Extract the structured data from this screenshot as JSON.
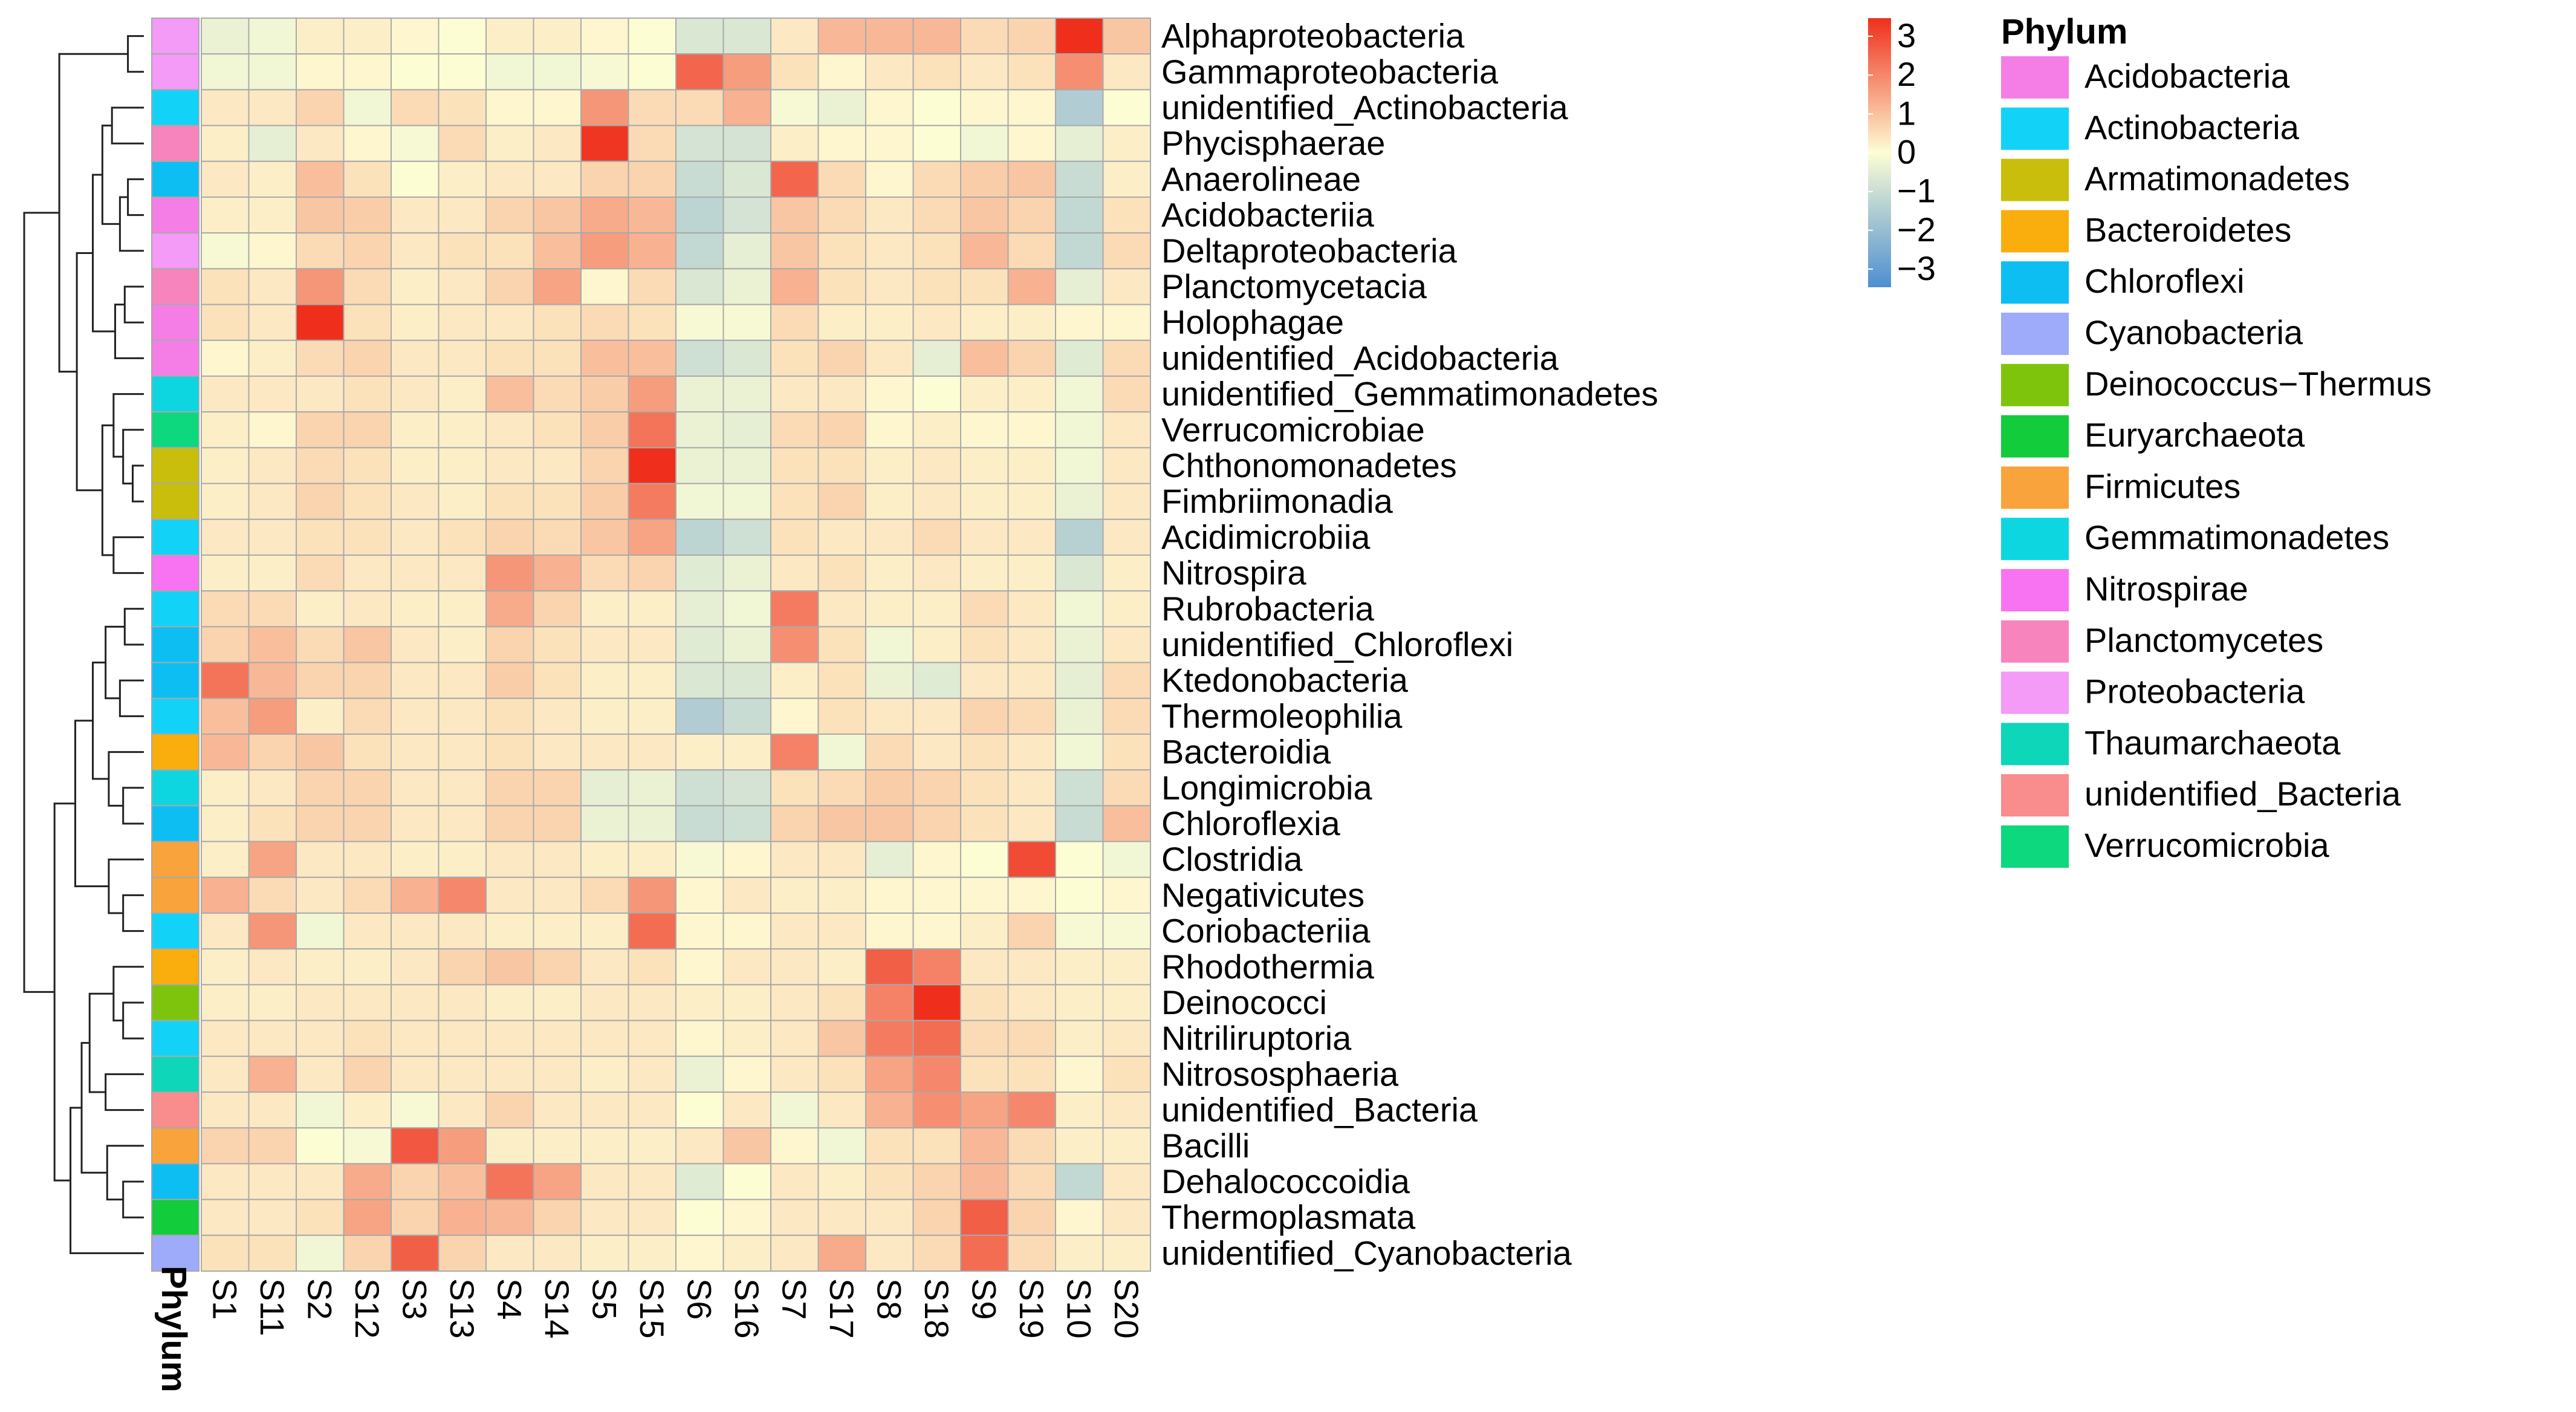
{
  "chart_data": {
    "type": "heatmap",
    "title": "",
    "rows": [
      "Alphaproteobacteria",
      "Gammaproteobacteria",
      "unidentified_Actinobacteria",
      "Phycisphaerae",
      "Anaerolineae",
      "Acidobacteriia",
      "Deltaproteobacteria",
      "Planctomycetacia",
      "Holophagae",
      "unidentified_Acidobacteria",
      "unidentified_Gemmatimonadetes",
      "Verrucomicrobiae",
      "Chthonomonadetes",
      "Fimbriimonadia",
      "Acidimicrobiia",
      "Nitrospira",
      "Rubrobacteria",
      "unidentified_Chloroflexi",
      "Ktedonobacteria",
      "Thermoleophilia",
      "Bacteroidia",
      "Longimicrobia",
      "Chloroflexia",
      "Clostridia",
      "Negativicutes",
      "Coriobacteriia",
      "Rhodothermia",
      "Deinococci",
      "Nitriliruptoria",
      "Nitrososphaeria",
      "unidentified_Bacteria",
      "Bacilli",
      "Dehalococcoidia",
      "Thermoplasmata",
      "unidentified_Cyanobacteria"
    ],
    "columns": [
      "S1",
      "S11",
      "S2",
      "S12",
      "S3",
      "S13",
      "S4",
      "S14",
      "S5",
      "S15",
      "S6",
      "S16",
      "S7",
      "S17",
      "S8",
      "S18",
      "S9",
      "S19",
      "S10",
      "S20"
    ],
    "row_phylum": [
      "Proteobacteria",
      "Proteobacteria",
      "Actinobacteria",
      "Planctomycetes",
      "Chloroflexi",
      "Acidobacteria",
      "Proteobacteria",
      "Planctomycetes",
      "Acidobacteria",
      "Acidobacteria",
      "Gemmatimonadetes",
      "Verrucomicrobia",
      "Armatimonadetes",
      "Armatimonadetes",
      "Actinobacteria",
      "Nitrospirae",
      "Actinobacteria",
      "Chloroflexi",
      "Chloroflexi",
      "Actinobacteria",
      "Bacteroidetes",
      "Gemmatimonadetes",
      "Chloroflexi",
      "Firmicutes",
      "Firmicutes",
      "Actinobacteria",
      "Bacteroidetes",
      "Deinococcus-Thermus",
      "Actinobacteria",
      "Thaumarchaeota",
      "unidentified_Bacteria",
      "Firmicutes",
      "Chloroflexi",
      "Euryarchaeota",
      "Cyanobacteria"
    ],
    "values": [
      [
        -0.3,
        -0.2,
        0.2,
        0.2,
        0.1,
        0,
        0.2,
        0.2,
        0.1,
        0,
        -0.6,
        -0.6,
        0.3,
        1.0,
        1.0,
        1.0,
        0.5,
        0.6,
        3.0,
        0.8
      ],
      [
        -0.2,
        -0.2,
        0.1,
        0.1,
        0,
        0,
        -0.2,
        -0.2,
        -0.1,
        0,
        2.2,
        1.4,
        0.4,
        0.1,
        0.3,
        0.4,
        0.3,
        0.4,
        1.6,
        0.3
      ],
      [
        0.3,
        0.3,
        0.6,
        -0.2,
        0.5,
        0.4,
        0.1,
        0.1,
        1.5,
        0.5,
        0.5,
        1.1,
        -0.1,
        -0.3,
        0.1,
        0,
        0.1,
        0.1,
        -1.3,
        0
      ],
      [
        0.2,
        -0.4,
        0.3,
        0.1,
        -0.1,
        0.5,
        0.2,
        0.3,
        2.9,
        0.5,
        -0.7,
        -0.7,
        0.2,
        0.1,
        0.1,
        0,
        -0.2,
        0.1,
        -0.4,
        0.2
      ],
      [
        0.3,
        0.2,
        0.9,
        0.4,
        0,
        0.2,
        0.3,
        0.3,
        0.6,
        0.6,
        -0.9,
        -0.6,
        2.2,
        0.5,
        0.1,
        0.5,
        0.7,
        0.8,
        -0.9,
        0.2
      ],
      [
        0.2,
        0.2,
        0.8,
        0.7,
        0.3,
        0.3,
        0.6,
        0.8,
        1.2,
        1.0,
        -1.1,
        -0.7,
        0.8,
        0.5,
        0.3,
        0.5,
        0.8,
        0.6,
        -1.0,
        0.4
      ],
      [
        -0.1,
        0.1,
        0.5,
        0.6,
        0.3,
        0.4,
        0.4,
        0.9,
        1.4,
        1.1,
        -1.0,
        -0.4,
        0.8,
        0.4,
        0.3,
        0.4,
        1.0,
        0.5,
        -1.0,
        0.5
      ],
      [
        0.4,
        0.3,
        1.5,
        0.5,
        0.2,
        0.3,
        0.6,
        1.3,
        0.1,
        0.5,
        -0.6,
        -0.3,
        1.1,
        0.4,
        0.3,
        0.4,
        0.4,
        1.1,
        -0.4,
        0.3
      ],
      [
        0.4,
        0.3,
        3.1,
        0.4,
        0.2,
        0.3,
        0.3,
        0.4,
        0.5,
        0.4,
        -0.1,
        -0.1,
        0.5,
        0.2,
        0.2,
        0.3,
        0.2,
        0.2,
        0.1,
        0.1
      ],
      [
        0.1,
        0.2,
        0.5,
        0.6,
        0.3,
        0.3,
        0.4,
        0.4,
        0.9,
        0.9,
        -0.8,
        -0.6,
        0.4,
        0.6,
        0.3,
        -0.4,
        0.9,
        0.6,
        -0.5,
        0.5
      ],
      [
        0.3,
        0.3,
        0.3,
        0.4,
        0.3,
        0.2,
        0.9,
        0.5,
        0.7,
        1.4,
        -0.3,
        -0.3,
        0.3,
        0.3,
        0.1,
        0,
        0.2,
        0.2,
        -0.2,
        0.5
      ],
      [
        0.2,
        0.1,
        0.6,
        0.6,
        0.2,
        0.2,
        0.3,
        0.4,
        0.7,
        2.0,
        -0.3,
        -0.4,
        0.5,
        0.6,
        0.1,
        0.2,
        0.1,
        0.1,
        -0.2,
        0.3
      ],
      [
        0.2,
        0.3,
        0.5,
        0.4,
        0.2,
        0.2,
        0.3,
        0.3,
        0.6,
        3.2,
        -0.3,
        -0.3,
        0.4,
        0.4,
        0.2,
        0.3,
        0.2,
        0.2,
        -0.2,
        0.3
      ],
      [
        0.2,
        0.3,
        0.6,
        0.4,
        0.3,
        0.2,
        0.4,
        0.4,
        0.7,
        1.9,
        -0.2,
        -0.2,
        0.4,
        0.6,
        0.2,
        0.3,
        0.2,
        0.2,
        -0.3,
        0.3
      ],
      [
        0.3,
        0.3,
        0.4,
        0.4,
        0.3,
        0.4,
        0.6,
        0.5,
        0.8,
        1.3,
        -1.1,
        -0.8,
        0.4,
        0.3,
        0.3,
        0.5,
        0.3,
        0.3,
        -1.2,
        0.3
      ],
      [
        0.2,
        0.2,
        0.5,
        0.3,
        0.3,
        0.3,
        1.5,
        1.1,
        0.5,
        0.6,
        -0.5,
        -0.3,
        0.3,
        0.4,
        0.2,
        0.3,
        0.2,
        0.2,
        -0.6,
        0.2
      ],
      [
        0.5,
        0.5,
        0.2,
        0.3,
        0.2,
        0.2,
        1.2,
        0.6,
        0.2,
        0.2,
        -0.4,
        -0.2,
        1.9,
        0.3,
        0.2,
        0.2,
        0.5,
        0.3,
        -0.2,
        0.2
      ],
      [
        0.6,
        0.9,
        0.5,
        0.8,
        0.3,
        0.2,
        0.6,
        0.4,
        0.3,
        0.3,
        -0.5,
        -0.3,
        1.6,
        0.4,
        -0.2,
        0.2,
        0.4,
        0.3,
        -0.3,
        0.3
      ],
      [
        2.0,
        1.0,
        0.6,
        0.6,
        0.3,
        0.3,
        0.7,
        0.4,
        0.2,
        0.2,
        -0.6,
        -0.6,
        0.2,
        0.4,
        -0.3,
        -0.5,
        0.3,
        0.3,
        -0.4,
        0.5
      ],
      [
        0.9,
        1.4,
        0.2,
        0.5,
        0.3,
        0.3,
        0.4,
        0.3,
        0.2,
        0.2,
        -1.3,
        -0.9,
        0.1,
        0.4,
        0.3,
        0.3,
        0.6,
        0.5,
        -0.3,
        0.5
      ],
      [
        1.0,
        0.6,
        0.8,
        0.4,
        0.3,
        0.3,
        0.4,
        0.3,
        0.3,
        0.3,
        0.2,
        0.2,
        1.8,
        -0.2,
        0.5,
        0.3,
        0.4,
        0.3,
        -0.2,
        0.4
      ],
      [
        0.2,
        0.3,
        0.6,
        0.6,
        0.3,
        0.3,
        0.6,
        0.6,
        -0.4,
        -0.3,
        -0.8,
        -0.7,
        0.4,
        0.5,
        0.7,
        0.6,
        0.4,
        0.3,
        -0.8,
        0.5
      ],
      [
        0.2,
        0.4,
        0.6,
        0.6,
        0.3,
        0.3,
        0.6,
        0.6,
        -0.3,
        -0.3,
        -0.9,
        -0.8,
        0.6,
        0.8,
        0.8,
        0.6,
        0.4,
        0.3,
        -0.9,
        0.9
      ],
      [
        0.2,
        1.3,
        0.3,
        0.3,
        0.2,
        0.2,
        0.3,
        0.3,
        0.2,
        0.2,
        -0.1,
        0.1,
        0.3,
        0.3,
        -0.4,
        0.1,
        0,
        2.6,
        0,
        -0.2
      ],
      [
        1.1,
        0.5,
        0.3,
        0.5,
        1.1,
        1.7,
        0.3,
        0.3,
        0.5,
        1.5,
        0.1,
        0.3,
        0.2,
        0.2,
        0.1,
        0.1,
        0.1,
        0.1,
        0,
        0.1
      ],
      [
        0.3,
        1.5,
        -0.2,
        0.3,
        0.3,
        0.3,
        0.2,
        0.2,
        0.2,
        2.1,
        0.1,
        0.1,
        0.3,
        0.3,
        0.1,
        0.1,
        0.2,
        0.6,
        -0.1,
        -0.1
      ],
      [
        0.2,
        0.3,
        0.2,
        0.2,
        0.3,
        0.6,
        0.8,
        0.6,
        0.3,
        0.4,
        0.1,
        0.3,
        0.3,
        0.2,
        2.3,
        1.8,
        0.3,
        0.3,
        0.2,
        0.2
      ],
      [
        0.2,
        0.2,
        0.3,
        0.3,
        0.3,
        0.3,
        0.2,
        0.2,
        0.3,
        0.3,
        0.2,
        0.2,
        0.3,
        0.4,
        1.8,
        3.3,
        0.4,
        0.3,
        0.2,
        0.2
      ],
      [
        0.3,
        0.3,
        0.3,
        0.4,
        0.3,
        0.3,
        0.3,
        0.3,
        0.3,
        0.3,
        0.1,
        0.2,
        0.3,
        0.8,
        1.9,
        2.1,
        0.5,
        0.5,
        0.2,
        0.3
      ],
      [
        0.3,
        1.1,
        0.3,
        0.6,
        0.3,
        0.3,
        0.3,
        0.3,
        0.2,
        0.3,
        -0.3,
        0.1,
        0.3,
        0.4,
        1.3,
        1.7,
        0.4,
        0.4,
        0.1,
        0.4
      ],
      [
        0.3,
        0.3,
        -0.2,
        0.2,
        -0.1,
        0.3,
        0.6,
        0.3,
        0.3,
        0.3,
        0,
        0.3,
        -0.2,
        0.3,
        1.1,
        1.6,
        1.3,
        1.7,
        0.2,
        0.3
      ],
      [
        0.6,
        0.6,
        0,
        -0.1,
        2.4,
        1.4,
        0.2,
        0.2,
        0.2,
        0.2,
        0.3,
        0.8,
        0.1,
        -0.2,
        0.4,
        0.4,
        1.0,
        0.5,
        0.2,
        0.2
      ],
      [
        0.3,
        0.3,
        0.3,
        1.2,
        0.6,
        0.9,
        2.0,
        1.3,
        0.3,
        0.3,
        -0.5,
        0,
        0.3,
        0.2,
        0.4,
        0.6,
        1.0,
        0.5,
        -1.0,
        0.3
      ],
      [
        0.3,
        0.3,
        0.4,
        1.3,
        0.6,
        1.1,
        1.0,
        0.6,
        0.3,
        0.3,
        0,
        0.1,
        0.3,
        0.3,
        0.3,
        0.6,
        2.3,
        0.6,
        0.1,
        0.3
      ],
      [
        0.4,
        0.4,
        -0.2,
        0.6,
        2.3,
        0.6,
        0.3,
        0.3,
        0.2,
        0.2,
        0.1,
        0.2,
        0.3,
        1.2,
        0.3,
        0.5,
        2.1,
        0.5,
        0.2,
        0.2
      ]
    ],
    "color_scale": {
      "min": -3,
      "max": 3,
      "ticks": [
        3,
        2,
        1,
        0,
        -1,
        -2,
        -3
      ],
      "low": "#4d8fd1",
      "mid": "#fdfdd4",
      "high": "#ef2f1c"
    },
    "column_annotation_title": "Phylum",
    "legend": {
      "title": "Phylum",
      "items": [
        {
          "label": "Acidobacteria",
          "color": "#f57ee6"
        },
        {
          "label": "Actinobacteria",
          "color": "#12d3f7"
        },
        {
          "label": "Armatimonadetes",
          "color": "#c8be0b"
        },
        {
          "label": "Bacteroidetes",
          "color": "#f9ae0d"
        },
        {
          "label": "Chloroflexi",
          "color": "#0dbef2"
        },
        {
          "label": "Cyanobacteria",
          "color": "#9eaafa"
        },
        {
          "label": "Deinococcus−Thermus",
          "color": "#7ec40d"
        },
        {
          "label": "Euryarchaeota",
          "color": "#12cc3c"
        },
        {
          "label": "Firmicutes",
          "color": "#f9a33d"
        },
        {
          "label": "Gemmatimonadetes",
          "color": "#0ed6e0"
        },
        {
          "label": "Nitrospirae",
          "color": "#f873f1"
        },
        {
          "label": "Planctomycetes",
          "color": "#f884bd"
        },
        {
          "label": "Proteobacteria",
          "color": "#f49af7"
        },
        {
          "label": "Thaumarchaeota",
          "color": "#0dd6b9"
        },
        {
          "label": "unidentified_Bacteria",
          "color": "#f98c8c"
        },
        {
          "label": "Verrucomicrobia",
          "color": "#0ed87e"
        }
      ]
    },
    "dendrogram": {
      "merges": [
        [
          [
            0
          ],
          [
            1
          ]
        ],
        [
          [
            4
          ],
          [
            5
          ]
        ],
        [
          [
            4,
            5
          ],
          [
            6
          ]
        ],
        [
          [
            2
          ],
          [
            3
          ]
        ],
        [
          [
            2,
            3
          ],
          [
            4,
            5,
            6
          ]
        ],
        [
          [
            7
          ],
          [
            8
          ]
        ],
        [
          [
            7,
            8
          ],
          [
            9
          ]
        ],
        [
          [
            2,
            3,
            4,
            5,
            6
          ],
          [
            7,
            8,
            9
          ]
        ],
        [
          [
            12
          ],
          [
            13
          ]
        ],
        [
          [
            11
          ],
          [
            12,
            13
          ]
        ],
        [
          [
            10
          ],
          [
            11,
            12,
            13
          ]
        ],
        [
          [
            14
          ],
          [
            15
          ]
        ],
        [
          [
            10,
            11,
            12,
            13
          ],
          [
            14,
            15
          ]
        ],
        [
          [
            2,
            3,
            4,
            5,
            6,
            7,
            8,
            9
          ],
          [
            10,
            11,
            12,
            13,
            14,
            15
          ]
        ],
        [
          [
            0,
            1
          ],
          [
            2,
            3,
            4,
            5,
            6,
            7,
            8,
            9,
            10,
            11,
            12,
            13,
            14,
            15
          ]
        ],
        [
          [
            16
          ],
          [
            17
          ]
        ],
        [
          [
            18
          ],
          [
            19
          ]
        ],
        [
          [
            16,
            17
          ],
          [
            18,
            19
          ]
        ],
        [
          [
            21
          ],
          [
            22
          ]
        ],
        [
          [
            20
          ],
          [
            21,
            22
          ]
        ],
        [
          [
            16,
            17,
            18,
            19
          ],
          [
            20,
            21,
            22
          ]
        ],
        [
          [
            24
          ],
          [
            25
          ]
        ],
        [
          [
            23
          ],
          [
            24,
            25
          ]
        ],
        [
          [
            16,
            17,
            18,
            19,
            20,
            21,
            22
          ],
          [
            23,
            24,
            25
          ]
        ],
        [
          [
            27
          ],
          [
            28
          ]
        ],
        [
          [
            26
          ],
          [
            27,
            28
          ]
        ],
        [
          [
            29
          ],
          [
            30
          ]
        ],
        [
          [
            26,
            27,
            28
          ],
          [
            29,
            30
          ]
        ],
        [
          [
            32
          ],
          [
            33
          ]
        ],
        [
          [
            31
          ],
          [
            32,
            33
          ]
        ],
        [
          [
            26,
            27,
            28,
            29,
            30
          ],
          [
            31,
            32,
            33
          ]
        ],
        [
          [
            26,
            27,
            28,
            29,
            30,
            31,
            32,
            33
          ],
          [
            34
          ]
        ],
        [
          [
            16,
            17,
            18,
            19,
            20,
            21,
            22,
            23,
            24,
            25
          ],
          [
            26,
            27,
            28,
            29,
            30,
            31,
            32,
            33,
            34
          ]
        ],
        [
          [
            0,
            1,
            2,
            3,
            4,
            5,
            6,
            7,
            8,
            9,
            10,
            11,
            12,
            13,
            14,
            15
          ],
          [
            16,
            17,
            18,
            19,
            20,
            21,
            22,
            23,
            24,
            25,
            26,
            27,
            28,
            29,
            30,
            31,
            32,
            33,
            34
          ]
        ]
      ],
      "heights": [
        1,
        1,
        1.5,
        2,
        2.6,
        1.2,
        1.8,
        3.2,
        0.7,
        1.3,
        1.9,
        1.9,
        2.6,
        4.2,
        5.3,
        1.2,
        1.5,
        2.4,
        1.3,
        2.2,
        3.2,
        1.3,
        2.2,
        4.3,
        1.3,
        1.9,
        2.4,
        3.4,
        1.3,
        2.3,
        3.9,
        4.6,
        5.6,
        7.5
      ]
    }
  }
}
